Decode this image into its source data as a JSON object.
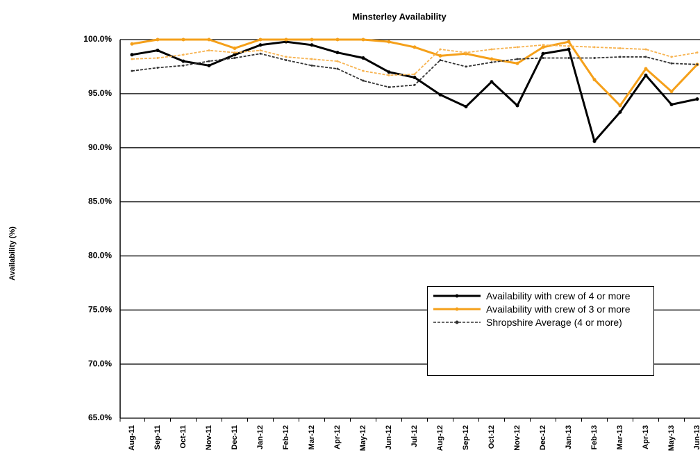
{
  "chart_data": {
    "type": "line",
    "title": "Minsterley Availability",
    "y_label": "Availability (%)",
    "categories": [
      "Aug-11",
      "Sep-11",
      "Oct-11",
      "Nov-11",
      "Dec-11",
      "Jan-12",
      "Feb-12",
      "Mar-12",
      "Apr-12",
      "May-12",
      "Jun-12",
      "Jul-12",
      "Aug-12",
      "Sep-12",
      "Oct-12",
      "Nov-12",
      "Dec-12",
      "Jan-13",
      "Feb-13",
      "Mar-13",
      "Apr-13",
      "May-13",
      "Jun-13"
    ],
    "series": [
      {
        "name": "Availability with crew of 4 or more",
        "color": "#000000",
        "dash": false,
        "values": [
          98.6,
          99.0,
          98.0,
          97.6,
          98.6,
          99.5,
          99.8,
          99.5,
          98.8,
          98.3,
          97.0,
          96.5,
          94.9,
          93.8,
          96.1,
          93.9,
          98.7,
          99.1,
          90.6,
          93.3,
          96.7,
          94.0,
          94.5
        ]
      },
      {
        "name": "Availability with crew of 3 or more",
        "color": "#f5a01a",
        "dash": false,
        "values": [
          99.6,
          100,
          100,
          100,
          99.2,
          100,
          100,
          100,
          100,
          100,
          99.8,
          99.3,
          98.5,
          98.7,
          98.2,
          97.8,
          99.3,
          99.8,
          96.3,
          93.9,
          97.3,
          95.2,
          97.7
        ]
      },
      {
        "name": "Shropshire Average (4 or more)",
        "color": "#333333",
        "dash": true,
        "values": [
          97.1,
          97.4,
          97.6,
          98.0,
          98.3,
          98.7,
          98.1,
          97.6,
          97.3,
          96.2,
          95.6,
          95.8,
          98.1,
          97.5,
          97.9,
          98.2,
          98.3,
          98.3,
          98.3,
          98.4,
          98.4,
          97.8,
          97.7
        ]
      },
      {
        "color": "#f7b350",
        "dash": true,
        "values": [
          98.2,
          98.3,
          98.6,
          99.0,
          98.8,
          99.0,
          98.4,
          98.2,
          98.0,
          97.1,
          96.7,
          96.8,
          99.1,
          98.8,
          99.1,
          99.3,
          99.5,
          99.4,
          99.3,
          99.2,
          99.1,
          98.4,
          98.8
        ]
      }
    ],
    "ylim": [
      65,
      100
    ],
    "yticks": [
      {
        "value": 65,
        "label": "65.0%"
      },
      {
        "value": 70,
        "label": "70.0%"
      },
      {
        "value": 75,
        "label": "75.0%"
      },
      {
        "value": 80,
        "label": "80.0%"
      },
      {
        "value": 85,
        "label": "85.0%"
      },
      {
        "value": 90,
        "label": "90.0%"
      },
      {
        "value": 95,
        "label": "95.0%"
      },
      {
        "value": 100,
        "label": "100.0%"
      }
    ],
    "grid": true
  }
}
